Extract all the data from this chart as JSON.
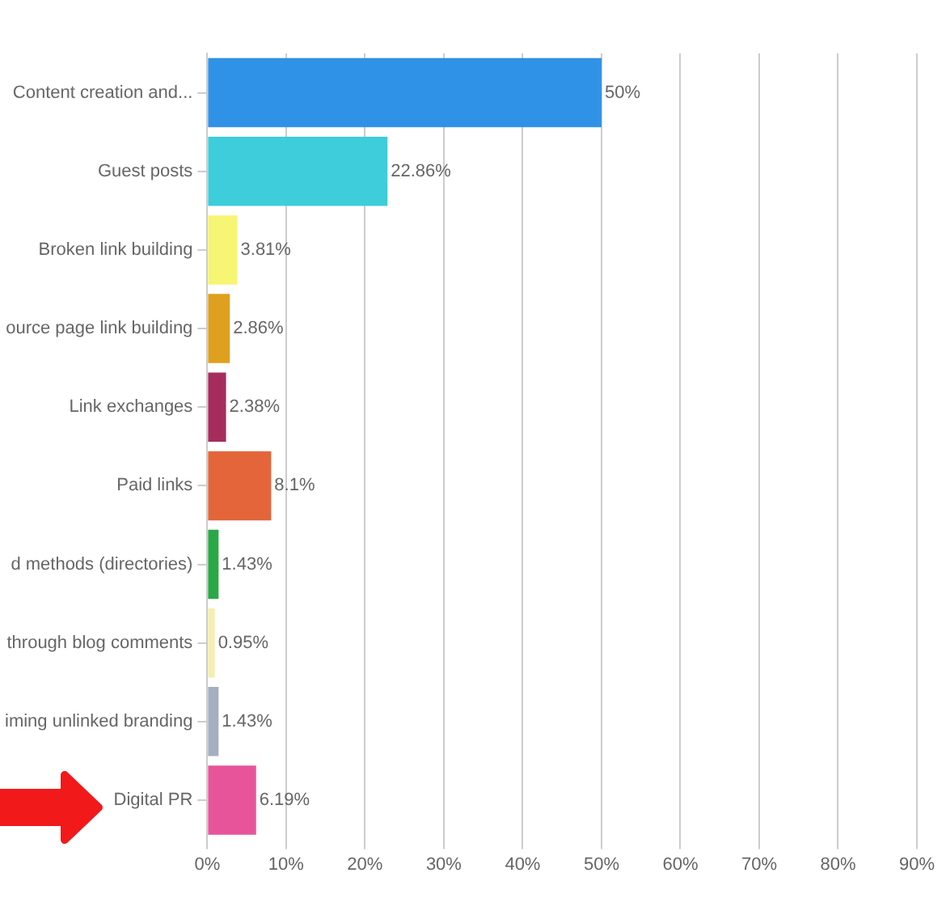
{
  "chart_data": {
    "type": "bar",
    "orientation": "horizontal",
    "categories": [
      "Content creation and...",
      "Guest posts",
      "Broken link building",
      "ource page link building",
      "Link exchanges",
      "Paid links",
      "d methods (directories)",
      "through blog comments",
      "iming unlinked branding",
      "Digital PR"
    ],
    "values": [
      50,
      22.86,
      3.81,
      2.86,
      2.38,
      8.1,
      1.43,
      0.95,
      1.43,
      6.19
    ],
    "colors": [
      "#3092e6",
      "#3dcddb",
      "#f7f574",
      "#dfa01f",
      "#a62c5e",
      "#e4653a",
      "#2aa845",
      "#f5eeb0",
      "#a4afc1",
      "#e8549a"
    ],
    "value_labels": [
      "50%",
      "22.86%",
      "3.81%",
      "2.86%",
      "2.38%",
      "8.1%",
      "1.43%",
      "0.95%",
      "1.43%",
      "6.19%"
    ],
    "xlim": [
      0,
      90
    ],
    "xticks": [
      {
        "value": 0,
        "label": "0%"
      },
      {
        "value": 10,
        "label": "10%"
      },
      {
        "value": 20,
        "label": "20%"
      },
      {
        "value": 30,
        "label": "30%"
      },
      {
        "value": 40,
        "label": "40%"
      },
      {
        "value": 50,
        "label": "50%"
      },
      {
        "value": 60,
        "label": "60%"
      },
      {
        "value": 70,
        "label": "70%"
      },
      {
        "value": 80,
        "label": "80%"
      },
      {
        "value": 90,
        "label": "90%"
      }
    ],
    "grid": "x"
  }
}
